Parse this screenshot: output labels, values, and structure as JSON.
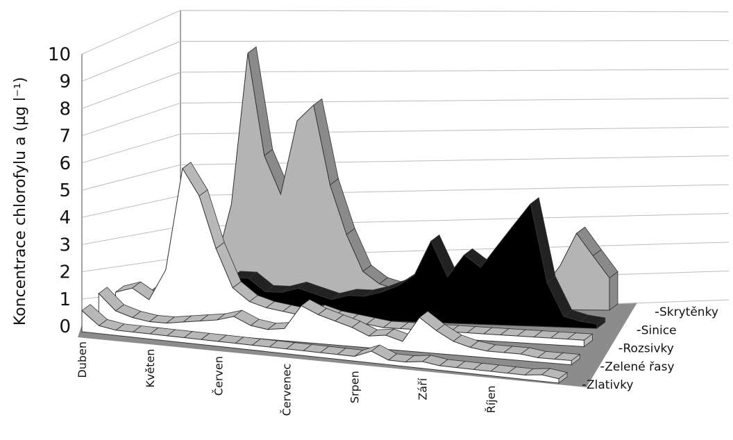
{
  "chart_data": {
    "type": "ribbon3d",
    "y_label": "Koncentrace chlorofylu a (µg l⁻¹)",
    "categories": [
      "Duben",
      null,
      null,
      null,
      "Květen",
      null,
      null,
      null,
      "Červen",
      null,
      null,
      null,
      "Červenec",
      null,
      null,
      null,
      "Srpen",
      null,
      null,
      null,
      "Září",
      null,
      null,
      null,
      "Říjen",
      null,
      null,
      null,
      null
    ],
    "ylim": [
      0,
      10
    ],
    "yticks": [
      0,
      1,
      2,
      3,
      4,
      5,
      6,
      7,
      8,
      9,
      10
    ],
    "grid": true,
    "series": [
      {
        "name": "Skrytěnky",
        "color": "#b4b4b4",
        "values": [
          0.5,
          0.5,
          0.6,
          0.8,
          1.5,
          4,
          10,
          6,
          4.5,
          7.5,
          8.2,
          5,
          3,
          1.5,
          1,
          0.8,
          0.6,
          0.5,
          0.5,
          0.5,
          0.5,
          0.5,
          0.5,
          0.5,
          1,
          2,
          3.5,
          2.5,
          1.5
        ]
      },
      {
        "name": "Sinice",
        "color": "#000000",
        "values": [
          0.2,
          0.2,
          0.2,
          0.3,
          0.5,
          1,
          1.5,
          1.5,
          1,
          1,
          1.2,
          1,
          0.8,
          1,
          1,
          1.2,
          1.5,
          2,
          3.5,
          2,
          3,
          2.5,
          3.5,
          4.5,
          5.5,
          2,
          0.5,
          0.3,
          0.2
        ]
      },
      {
        "name": "Rozsivky",
        "color": "#ffffff",
        "values": [
          1,
          1.2,
          0.8,
          2,
          6,
          5,
          3,
          1.5,
          1,
          0.8,
          0.7,
          0.6,
          0.8,
          0.6,
          0.5,
          0.4,
          0.3,
          0.3,
          0.3,
          0.3,
          0.3,
          0.3,
          0.3,
          0.3,
          0.3,
          0.3,
          0.3,
          0.3,
          0.3
        ]
      },
      {
        "name": "Zelené řasy",
        "color": "#ffffff",
        "values": [
          1.2,
          0.6,
          0.4,
          0.3,
          0.3,
          0.4,
          0.5,
          0.6,
          0.8,
          0.5,
          0.4,
          0.5,
          1.5,
          1.2,
          1,
          0.8,
          0.5,
          0.6,
          0.4,
          1.5,
          1,
          0.6,
          0.4,
          0.3,
          0.3,
          0.3,
          0.2,
          0.2,
          0.2
        ]
      },
      {
        "name": "Zlativky",
        "color": "#ffffff",
        "values": [
          0.8,
          0.3,
          0.2,
          0.2,
          0.2,
          0.2,
          0.2,
          0.2,
          0.2,
          0.2,
          0.2,
          0.2,
          0.2,
          0.2,
          0.2,
          0.2,
          0.2,
          0.5,
          0.2,
          0.2,
          0.3,
          0.2,
          0.2,
          0.2,
          0.2,
          0.2,
          0.2,
          0.3,
          0.2
        ]
      }
    ]
  }
}
